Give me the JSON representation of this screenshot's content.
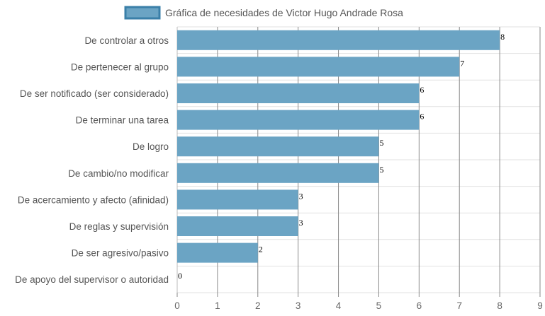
{
  "chart_data": {
    "type": "bar",
    "orientation": "horizontal",
    "title": "",
    "categories": [
      "De controlar a otros",
      "De pertenecer al grupo",
      "De ser notificado (ser considerado)",
      "De terminar una tarea",
      "De logro",
      "De cambio/no modificar",
      "De acercamiento y afecto (afinidad)",
      "De reglas y supervisión",
      "De ser agresivo/pasivo",
      "De apoyo del supervisor o autoridad"
    ],
    "series": [
      {
        "name": "Gráfica de necesidades de Victor Hugo Andrade Rosa",
        "values": [
          8,
          7,
          6,
          6,
          5,
          5,
          3,
          3,
          2,
          0
        ],
        "color": "#6ba4c4",
        "border_color": "#3a7fa8"
      }
    ],
    "xlim": [
      0,
      9
    ],
    "x_ticks": [
      "0",
      "1",
      "2",
      "3",
      "4",
      "5",
      "6",
      "7",
      "8",
      "9"
    ],
    "grid": true,
    "legend_position": "top-center",
    "data_labels": true
  }
}
